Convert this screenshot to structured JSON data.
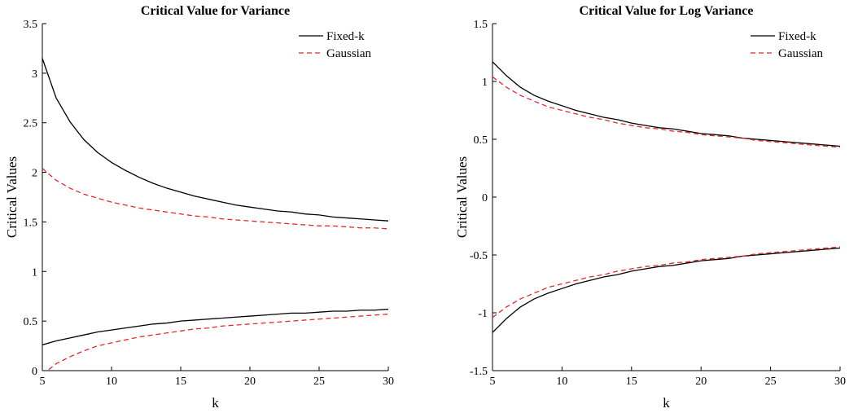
{
  "chart_data": [
    {
      "type": "line",
      "title": "Critical Value for Variance",
      "xlabel": "k",
      "ylabel": "Critical Values",
      "xlim": [
        5,
        30
      ],
      "ylim": [
        0,
        3.5
      ],
      "xticks": [
        "5",
        "10",
        "15",
        "20",
        "25",
        "30"
      ],
      "yticks": [
        "0",
        "0.5",
        "1",
        "1.5",
        "2",
        "2.5",
        "3",
        "3.5"
      ],
      "grid": false,
      "legend_position": "top-right",
      "legend": [
        "Fixed-k",
        "Gaussian"
      ],
      "x": [
        5,
        6,
        7,
        8,
        9,
        10,
        11,
        12,
        13,
        14,
        15,
        16,
        17,
        18,
        19,
        20,
        21,
        22,
        23,
        24,
        25,
        26,
        27,
        28,
        29,
        30
      ],
      "series": [
        {
          "name": "Fixed-k",
          "color": "#000000",
          "dash": "solid",
          "values": [
            3.15,
            2.75,
            2.51,
            2.33,
            2.2,
            2.1,
            2.02,
            1.95,
            1.89,
            1.84,
            1.8,
            1.76,
            1.73,
            1.7,
            1.67,
            1.65,
            1.63,
            1.61,
            1.6,
            1.58,
            1.57,
            1.55,
            1.54,
            1.53,
            1.52,
            1.51
          ]
        },
        {
          "name": "Gaussian",
          "color": "#e8262b",
          "dash": "dashed",
          "values": [
            2.04,
            1.92,
            1.84,
            1.78,
            1.74,
            1.7,
            1.67,
            1.64,
            1.62,
            1.6,
            1.58,
            1.56,
            1.55,
            1.53,
            1.52,
            1.51,
            1.5,
            1.49,
            1.48,
            1.47,
            1.46,
            1.46,
            1.45,
            1.44,
            1.44,
            1.43
          ]
        },
        {
          "name": "Fixed-k",
          "color": "#000000",
          "dash": "solid",
          "values": [
            0.26,
            0.3,
            0.33,
            0.36,
            0.39,
            0.41,
            0.43,
            0.45,
            0.47,
            0.48,
            0.5,
            0.51,
            0.52,
            0.53,
            0.54,
            0.55,
            0.56,
            0.57,
            0.58,
            0.58,
            0.59,
            0.6,
            0.6,
            0.61,
            0.61,
            0.62
          ]
        },
        {
          "name": "Gaussian",
          "color": "#e8262b",
          "dash": "dashed",
          "values": [
            -0.04,
            0.07,
            0.14,
            0.2,
            0.25,
            0.28,
            0.31,
            0.34,
            0.36,
            0.38,
            0.4,
            0.42,
            0.43,
            0.45,
            0.46,
            0.47,
            0.48,
            0.49,
            0.5,
            0.51,
            0.52,
            0.53,
            0.54,
            0.55,
            0.56,
            0.57
          ]
        }
      ]
    },
    {
      "type": "line",
      "title": "Critical Value for Log Variance",
      "xlabel": "k",
      "ylabel": "Critical Values",
      "xlim": [
        5,
        30
      ],
      "ylim": [
        -1.5,
        1.5
      ],
      "xticks": [
        "5",
        "10",
        "15",
        "20",
        "25",
        "30"
      ],
      "yticks": [
        "-1.5",
        "-1",
        "-0.5",
        "0",
        "0.5",
        "1",
        "1.5"
      ],
      "grid": false,
      "legend_position": "top-right",
      "legend": [
        "Fixed-k",
        "Gaussian"
      ],
      "x": [
        5,
        6,
        7,
        8,
        9,
        10,
        11,
        12,
        13,
        14,
        15,
        16,
        17,
        18,
        19,
        20,
        21,
        22,
        23,
        24,
        25,
        26,
        27,
        28,
        29,
        30
      ],
      "series": [
        {
          "name": "Fixed-k",
          "color": "#000000",
          "dash": "solid",
          "values": [
            1.17,
            1.05,
            0.95,
            0.88,
            0.83,
            0.79,
            0.75,
            0.72,
            0.69,
            0.67,
            0.64,
            0.62,
            0.6,
            0.59,
            0.57,
            0.55,
            0.54,
            0.53,
            0.51,
            0.5,
            0.49,
            0.48,
            0.47,
            0.46,
            0.45,
            0.44
          ]
        },
        {
          "name": "Gaussian",
          "color": "#e8262b",
          "dash": "dashed",
          "values": [
            1.04,
            0.95,
            0.88,
            0.83,
            0.78,
            0.75,
            0.72,
            0.69,
            0.67,
            0.64,
            0.62,
            0.6,
            0.59,
            0.57,
            0.56,
            0.54,
            0.53,
            0.52,
            0.51,
            0.49,
            0.48,
            0.47,
            0.46,
            0.45,
            0.44,
            0.43
          ]
        },
        {
          "name": "Fixed-k",
          "color": "#000000",
          "dash": "solid",
          "values": [
            -1.17,
            -1.05,
            -0.95,
            -0.88,
            -0.83,
            -0.79,
            -0.75,
            -0.72,
            -0.69,
            -0.67,
            -0.64,
            -0.62,
            -0.6,
            -0.59,
            -0.57,
            -0.55,
            -0.54,
            -0.53,
            -0.51,
            -0.5,
            -0.49,
            -0.48,
            -0.47,
            -0.46,
            -0.45,
            -0.44
          ]
        },
        {
          "name": "Gaussian",
          "color": "#e8262b",
          "dash": "dashed",
          "values": [
            -1.04,
            -0.95,
            -0.88,
            -0.83,
            -0.78,
            -0.75,
            -0.72,
            -0.69,
            -0.67,
            -0.64,
            -0.62,
            -0.6,
            -0.59,
            -0.57,
            -0.56,
            -0.54,
            -0.53,
            -0.52,
            -0.51,
            -0.49,
            -0.48,
            -0.47,
            -0.46,
            -0.45,
            -0.44,
            -0.43
          ]
        }
      ]
    }
  ]
}
